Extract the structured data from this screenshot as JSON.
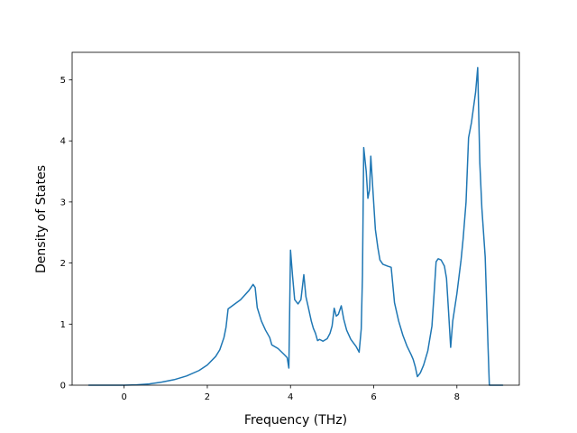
{
  "chart_data": {
    "type": "line",
    "title": "",
    "xlabel": "Frequency (THz)",
    "ylabel": "Density of States",
    "xlim": [
      -1.25,
      9.5
    ],
    "ylim": [
      0,
      5.45
    ],
    "xticks": [
      0,
      2,
      4,
      6,
      8
    ],
    "yticks": [
      0,
      1,
      2,
      3,
      4,
      5
    ],
    "grid": false,
    "legend": "none",
    "series": [
      {
        "color": "#1f77b4",
        "points": [
          [
            -0.85,
            0.0
          ],
          [
            0.0,
            0.0
          ],
          [
            0.3,
            0.005
          ],
          [
            0.6,
            0.02
          ],
          [
            0.9,
            0.05
          ],
          [
            1.2,
            0.09
          ],
          [
            1.5,
            0.15
          ],
          [
            1.8,
            0.24
          ],
          [
            2.0,
            0.33
          ],
          [
            2.2,
            0.47
          ],
          [
            2.3,
            0.58
          ],
          [
            2.4,
            0.78
          ],
          [
            2.45,
            0.95
          ],
          [
            2.5,
            1.25
          ],
          [
            2.6,
            1.3
          ],
          [
            2.8,
            1.4
          ],
          [
            3.0,
            1.55
          ],
          [
            3.1,
            1.65
          ],
          [
            3.15,
            1.6
          ],
          [
            3.2,
            1.27
          ],
          [
            3.3,
            1.05
          ],
          [
            3.4,
            0.9
          ],
          [
            3.5,
            0.78
          ],
          [
            3.55,
            0.66
          ],
          [
            3.7,
            0.6
          ],
          [
            3.85,
            0.5
          ],
          [
            3.92,
            0.45
          ],
          [
            3.96,
            0.28
          ],
          [
            4.0,
            2.21
          ],
          [
            4.05,
            1.78
          ],
          [
            4.1,
            1.4
          ],
          [
            4.18,
            1.33
          ],
          [
            4.25,
            1.4
          ],
          [
            4.32,
            1.81
          ],
          [
            4.37,
            1.45
          ],
          [
            4.42,
            1.3
          ],
          [
            4.5,
            1.05
          ],
          [
            4.55,
            0.93
          ],
          [
            4.6,
            0.85
          ],
          [
            4.65,
            0.73
          ],
          [
            4.7,
            0.75
          ],
          [
            4.78,
            0.72
          ],
          [
            4.88,
            0.76
          ],
          [
            4.95,
            0.85
          ],
          [
            5.0,
            0.97
          ],
          [
            5.05,
            1.26
          ],
          [
            5.1,
            1.13
          ],
          [
            5.15,
            1.16
          ],
          [
            5.22,
            1.3
          ],
          [
            5.28,
            1.08
          ],
          [
            5.35,
            0.9
          ],
          [
            5.45,
            0.75
          ],
          [
            5.58,
            0.63
          ],
          [
            5.65,
            0.54
          ],
          [
            5.7,
            0.92
          ],
          [
            5.73,
            1.8
          ],
          [
            5.76,
            3.89
          ],
          [
            5.82,
            3.5
          ],
          [
            5.86,
            3.06
          ],
          [
            5.9,
            3.2
          ],
          [
            5.93,
            3.75
          ],
          [
            5.98,
            3.2
          ],
          [
            6.04,
            2.55
          ],
          [
            6.1,
            2.25
          ],
          [
            6.15,
            2.05
          ],
          [
            6.22,
            1.98
          ],
          [
            6.33,
            1.95
          ],
          [
            6.42,
            1.93
          ],
          [
            6.5,
            1.35
          ],
          [
            6.6,
            1.05
          ],
          [
            6.7,
            0.82
          ],
          [
            6.8,
            0.64
          ],
          [
            6.9,
            0.5
          ],
          [
            6.95,
            0.42
          ],
          [
            7.0,
            0.3
          ],
          [
            7.05,
            0.14
          ],
          [
            7.12,
            0.2
          ],
          [
            7.2,
            0.33
          ],
          [
            7.3,
            0.56
          ],
          [
            7.4,
            0.97
          ],
          [
            7.45,
            1.48
          ],
          [
            7.5,
            2.02
          ],
          [
            7.55,
            2.07
          ],
          [
            7.62,
            2.05
          ],
          [
            7.7,
            1.95
          ],
          [
            7.75,
            1.75
          ],
          [
            7.8,
            1.2
          ],
          [
            7.85,
            0.62
          ],
          [
            7.9,
            1.05
          ],
          [
            8.0,
            1.5
          ],
          [
            8.1,
            2.05
          ],
          [
            8.15,
            2.4
          ],
          [
            8.22,
            3.0
          ],
          [
            8.28,
            4.05
          ],
          [
            8.35,
            4.3
          ],
          [
            8.45,
            4.8
          ],
          [
            8.5,
            5.2
          ],
          [
            8.55,
            3.65
          ],
          [
            8.6,
            2.9
          ],
          [
            8.68,
            2.1
          ],
          [
            8.75,
            0.6
          ],
          [
            8.78,
            0.0
          ],
          [
            9.1,
            0.0
          ]
        ]
      }
    ]
  }
}
